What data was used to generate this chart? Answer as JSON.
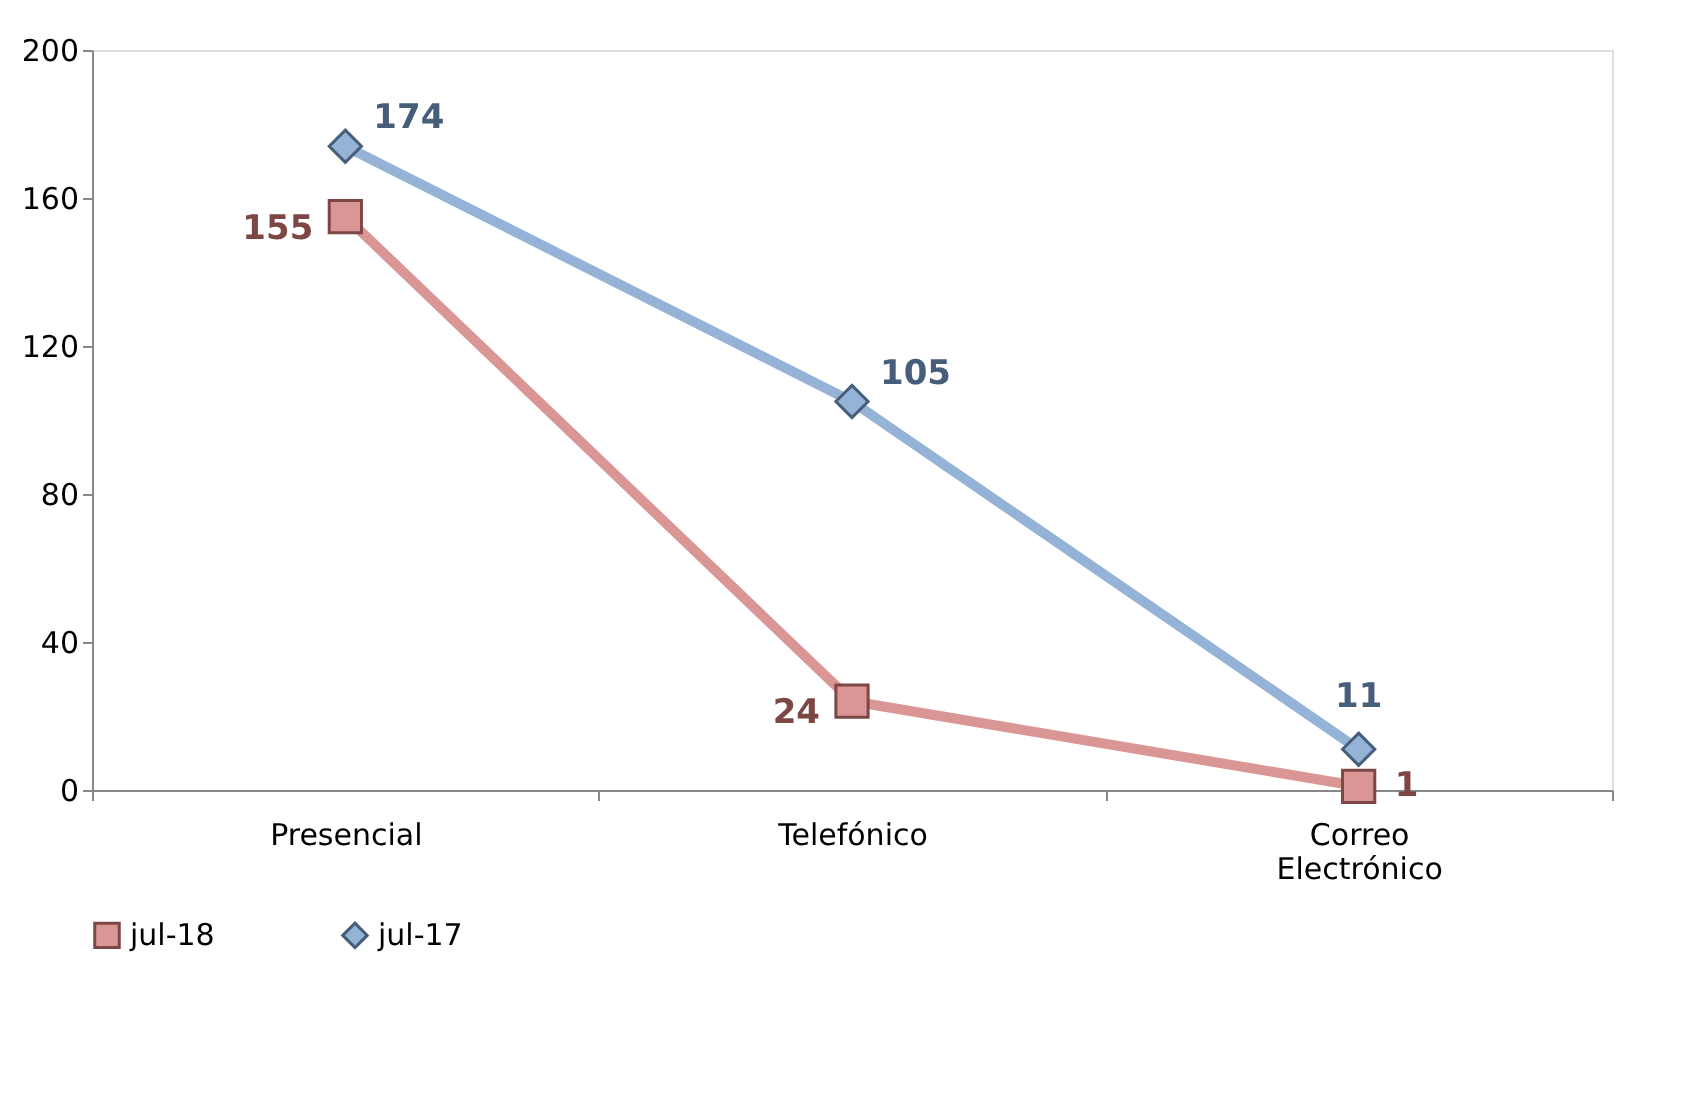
{
  "chart_data": {
    "type": "line",
    "categories": [
      "Presencial",
      "Telefónico",
      "Correo Electrónico"
    ],
    "series": [
      {
        "name": "jul-18",
        "color": "#d99694",
        "marker": "square",
        "values": [
          155,
          24,
          1
        ]
      },
      {
        "name": "jul-17",
        "color": "#95b3d7",
        "marker": "diamond",
        "values": [
          174,
          105,
          11
        ]
      }
    ],
    "ylim": [
      0,
      200
    ],
    "yticks": [
      0,
      40,
      80,
      120,
      160,
      200
    ],
    "grid": false,
    "legend": "bottom",
    "data_labels": true
  }
}
